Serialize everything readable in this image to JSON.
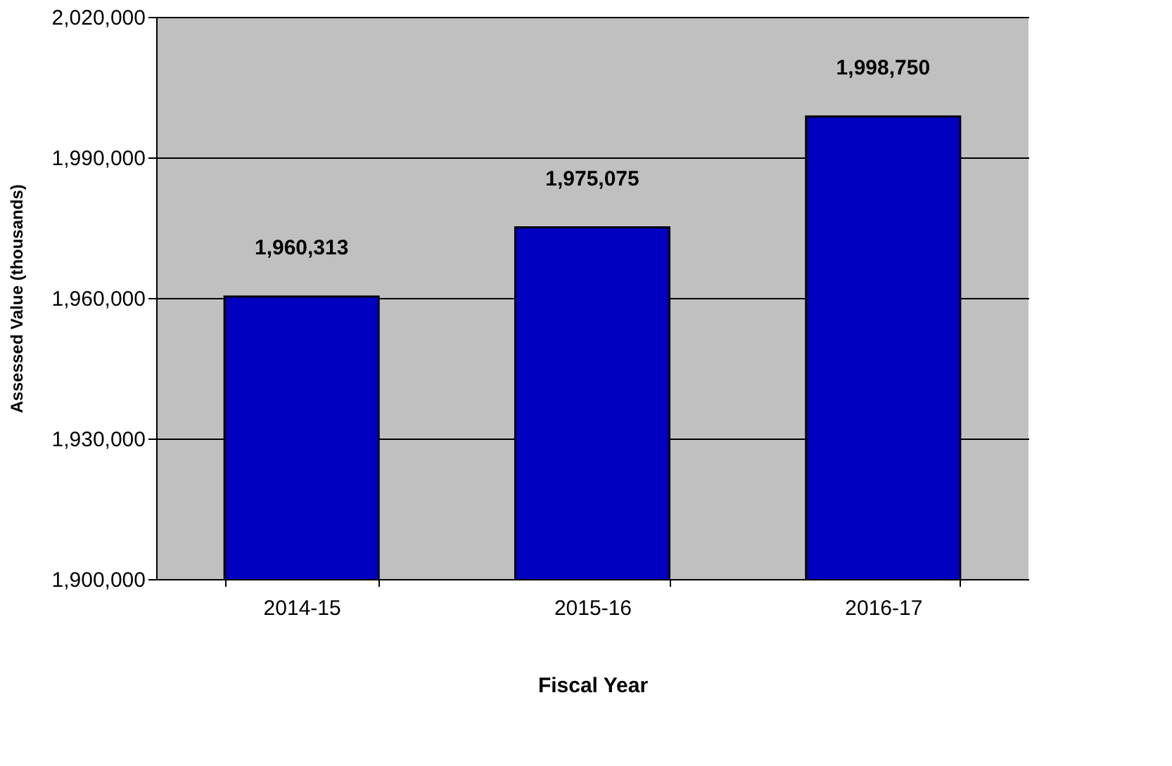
{
  "chart_data": {
    "type": "bar",
    "xlabel": "Fiscal Year",
    "ylabel": "Assessed  Value (thousands)",
    "categories": [
      "2014-15",
      "2015-16",
      "2016-17"
    ],
    "values": [
      1960313,
      1975075,
      1998750
    ],
    "value_labels": [
      "1,960,313",
      "1,975,075",
      "1,998,750"
    ],
    "color": "#0000c0",
    "ylim": [
      1900000,
      2020000
    ],
    "yticks": [
      {
        "value": 1900000,
        "label": "1,900,000"
      },
      {
        "value": 1930000,
        "label": "1,930,000"
      },
      {
        "value": 1960000,
        "label": "1,960,000"
      },
      {
        "value": 1990000,
        "label": "1,990,000"
      },
      {
        "value": 2020000,
        "label": "2,020,000"
      }
    ],
    "grid": "y"
  }
}
